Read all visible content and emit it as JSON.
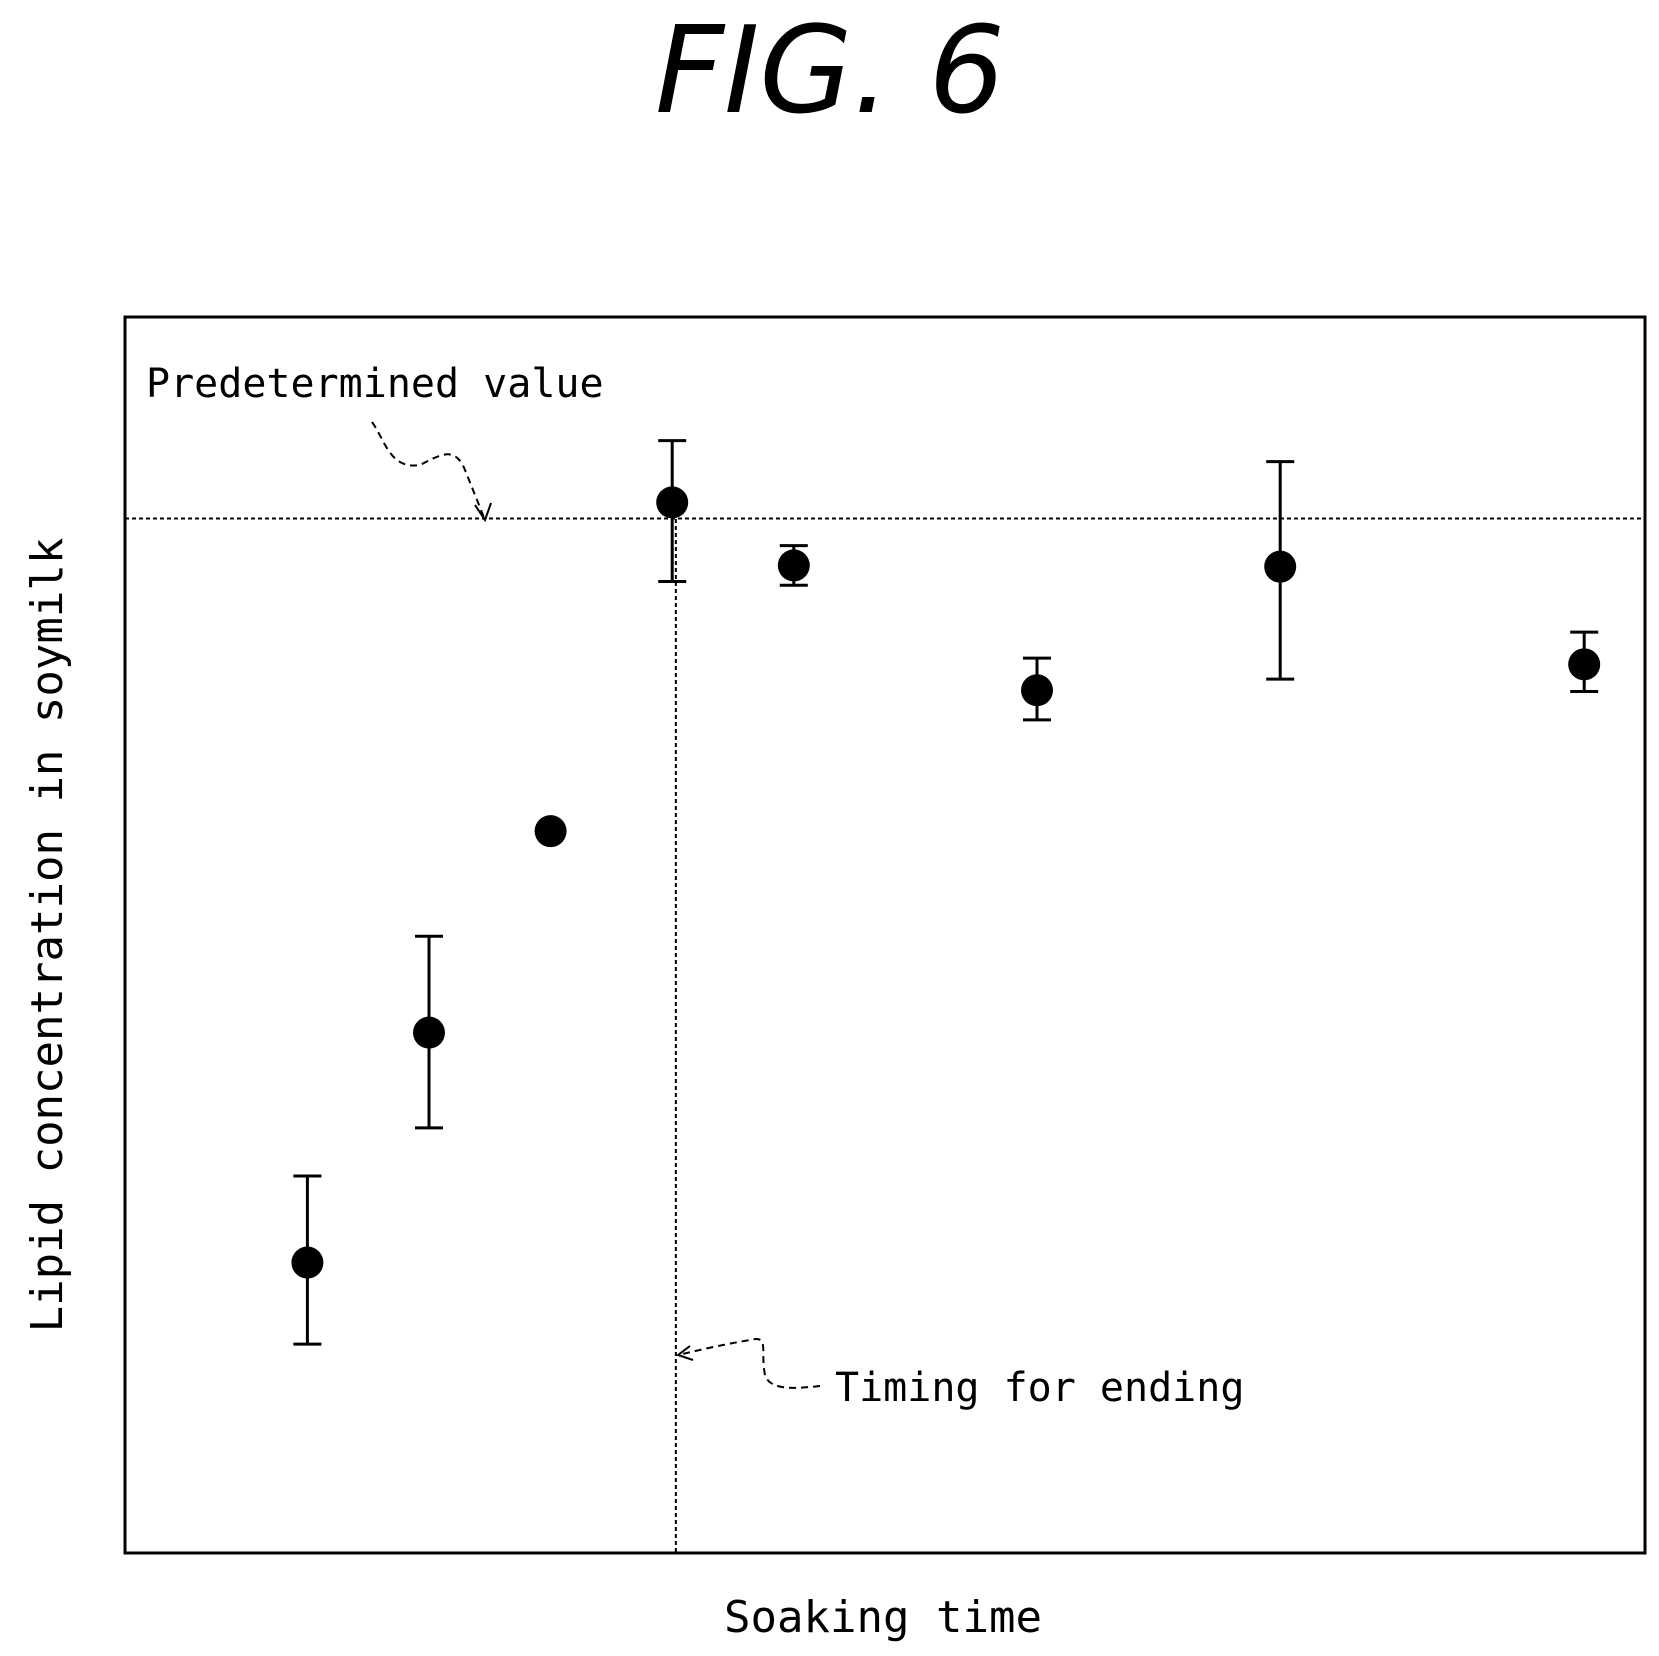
{
  "figure_label": "FIG. 6",
  "chart_data": {
    "type": "scatter",
    "title": "",
    "xlabel": "Soaking time",
    "ylabel": "Lipid concentration in soymilk",
    "x_ticks": "none",
    "y_ticks": "none",
    "grid": false,
    "xlim": [
      0,
      12.5
    ],
    "ylim": [
      0,
      100
    ],
    "points": [
      {
        "x": 1.5,
        "y": 23.5,
        "err_low": 16.9,
        "err_high": 30.5
      },
      {
        "x": 2.5,
        "y": 42.1,
        "err_low": 34.4,
        "err_high": 49.9
      },
      {
        "x": 3.5,
        "y": 58.4,
        "err_low": null,
        "err_high": null
      },
      {
        "x": 4.5,
        "y": 85.0,
        "err_low": 78.6,
        "err_high": 90.0
      },
      {
        "x": 5.5,
        "y": 79.9,
        "err_low": 78.3,
        "err_high": 81.5
      },
      {
        "x": 7.5,
        "y": 69.8,
        "err_low": 67.4,
        "err_high": 72.4
      },
      {
        "x": 9.5,
        "y": 79.8,
        "err_low": 70.7,
        "err_high": 88.3
      },
      {
        "x": 12.0,
        "y": 71.9,
        "err_low": 69.7,
        "err_high": 74.5
      }
    ],
    "reference_lines": [
      {
        "orientation": "horizontal",
        "value": 83.7,
        "style": "dotted",
        "label": "Predetermined value"
      },
      {
        "orientation": "vertical",
        "value": 4.53,
        "style": "dotted",
        "label": "Timing for ending"
      }
    ]
  }
}
